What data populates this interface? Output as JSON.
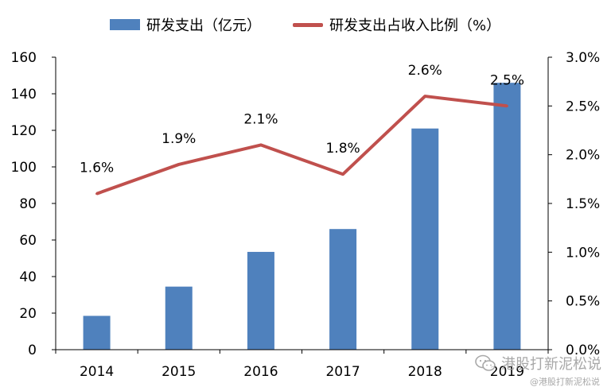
{
  "legend": {
    "bar_label": "研发支出（亿元）",
    "line_label": "研发支出占收入比例（%）"
  },
  "colors": {
    "bar": "#4f81bd",
    "line": "#c0504d",
    "axis": "#000000"
  },
  "watermark": {
    "icon": "wechat-icon",
    "text": "港股打新泥松说",
    "subtext": "@港股打新泥松说"
  },
  "chart_data": {
    "type": "bar",
    "categories": [
      "2014",
      "2015",
      "2016",
      "2017",
      "2018",
      "2019"
    ],
    "series": [
      {
        "name": "研发支出（亿元）",
        "type": "bar",
        "axis": "left",
        "values": [
          18.5,
          34.5,
          53.5,
          66,
          121,
          146
        ]
      },
      {
        "name": "研发支出占收入比例（%）",
        "type": "line",
        "axis": "right",
        "values": [
          1.6,
          1.9,
          2.1,
          1.8,
          2.6,
          2.5
        ],
        "labels": [
          "1.6%",
          "1.9%",
          "2.1%",
          "1.8%",
          "2.6%",
          "2.5%"
        ]
      }
    ],
    "y_left": {
      "ylim": [
        0,
        160
      ],
      "ticks": [
        "0",
        "20",
        "40",
        "60",
        "80",
        "100",
        "120",
        "140",
        "160"
      ]
    },
    "y_right": {
      "ylim": [
        0,
        3.0
      ],
      "ticks": [
        "0.0%",
        "0.5%",
        "1.0%",
        "1.5%",
        "2.0%",
        "2.5%",
        "3.0%"
      ]
    },
    "grid": false,
    "legend_position": "top"
  }
}
